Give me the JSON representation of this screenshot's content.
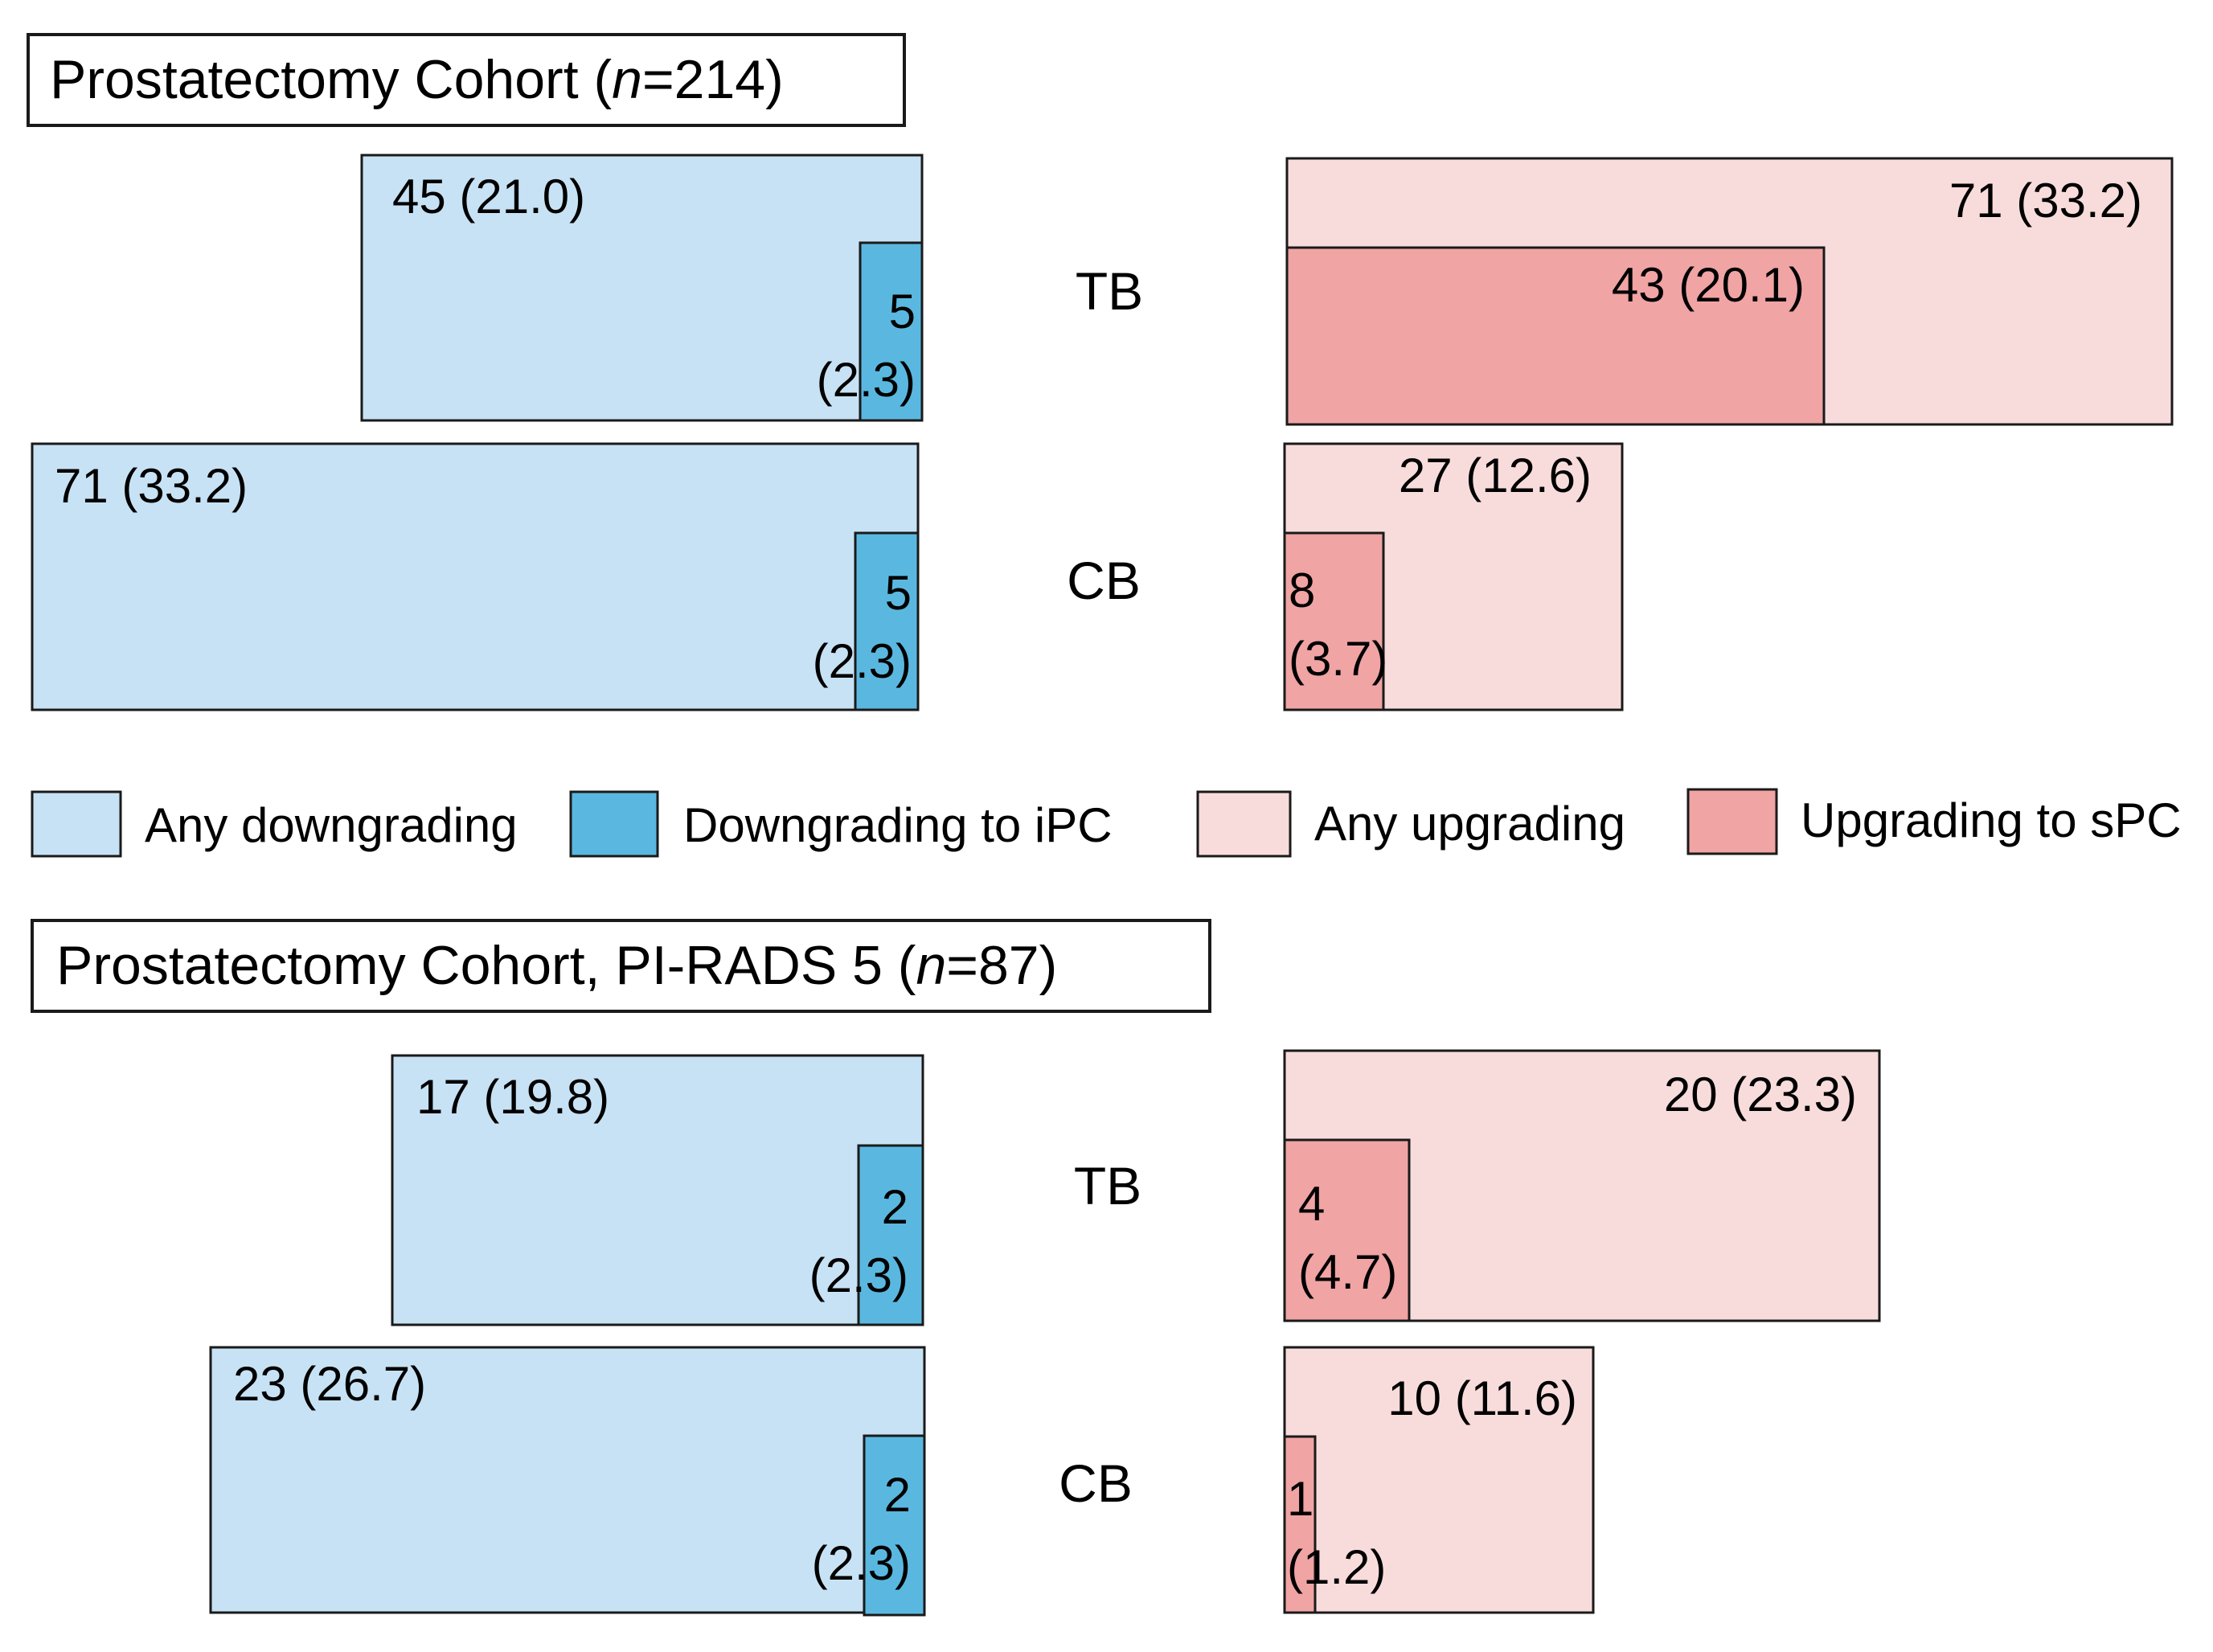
{
  "colors": {
    "any_downgrading": "#c7e2f4",
    "downgrading_to_ipc": "#5ab8e0",
    "any_upgrading": "#f8dcdc",
    "upgrading_to_spc": "#f0a4a4",
    "stroke": "#1a1a1a"
  },
  "legend": [
    {
      "key": "any_downgrading",
      "label": "Any downgrading"
    },
    {
      "key": "downgrading_to_ipc",
      "label": "Downgrading to iPC"
    },
    {
      "key": "any_upgrading",
      "label": "Any upgrading"
    },
    {
      "key": "upgrading_to_spc",
      "label": "Upgrading to sPC"
    }
  ],
  "chart_data": [
    {
      "type": "area-proportional boxes",
      "title_prefix": "Prostatectomy Cohort (",
      "title_n_var": "n",
      "title_n_value": "=214)",
      "rows": [
        {
          "label": "TB",
          "any_downgrading": {
            "n": 45,
            "pct": 21.0,
            "text": "45 (21.0)"
          },
          "downgrading_to_ipc": {
            "n": 5,
            "pct": 2.3,
            "text_n": "5",
            "text_pct": "(2.3)"
          },
          "any_upgrading": {
            "n": 71,
            "pct": 33.2,
            "text": "71 (33.2)"
          },
          "upgrading_to_spc": {
            "n": 43,
            "pct": 20.1,
            "text": "43 (20.1)"
          }
        },
        {
          "label": "CB",
          "any_downgrading": {
            "n": 71,
            "pct": 33.2,
            "text": "71 (33.2)"
          },
          "downgrading_to_ipc": {
            "n": 5,
            "pct": 2.3,
            "text_n": "5",
            "text_pct": "(2.3)"
          },
          "any_upgrading": {
            "n": 27,
            "pct": 12.6,
            "text": "27 (12.6)"
          },
          "upgrading_to_spc": {
            "n": 8,
            "pct": 3.7,
            "text_n": "8",
            "text_pct": "(3.7)"
          }
        }
      ]
    },
    {
      "type": "area-proportional boxes",
      "title_prefix": "Prostatectomy Cohort, PI-RADS 5 (",
      "title_n_var": "n",
      "title_n_value": "=87)",
      "rows": [
        {
          "label": "TB",
          "any_downgrading": {
            "n": 17,
            "pct": 19.8,
            "text": "17 (19.8)"
          },
          "downgrading_to_ipc": {
            "n": 2,
            "pct": 2.3,
            "text_n": "2",
            "text_pct": "(2.3)"
          },
          "any_upgrading": {
            "n": 20,
            "pct": 23.3,
            "text": "20 (23.3)"
          },
          "upgrading_to_spc": {
            "n": 4,
            "pct": 4.7,
            "text_n": "4",
            "text_pct": "(4.7)"
          }
        },
        {
          "label": "CB",
          "any_downgrading": {
            "n": 23,
            "pct": 26.7,
            "text": "23 (26.7)"
          },
          "downgrading_to_ipc": {
            "n": 2,
            "pct": 2.3,
            "text_n": "2",
            "text_pct": "(2.3)"
          },
          "any_upgrading": {
            "n": 10,
            "pct": 11.6,
            "text": "10 (11.6)"
          },
          "upgrading_to_spc": {
            "n": 1,
            "pct": 1.2,
            "text_n": "1",
            "text_pct": "(1.2)"
          }
        }
      ]
    }
  ]
}
